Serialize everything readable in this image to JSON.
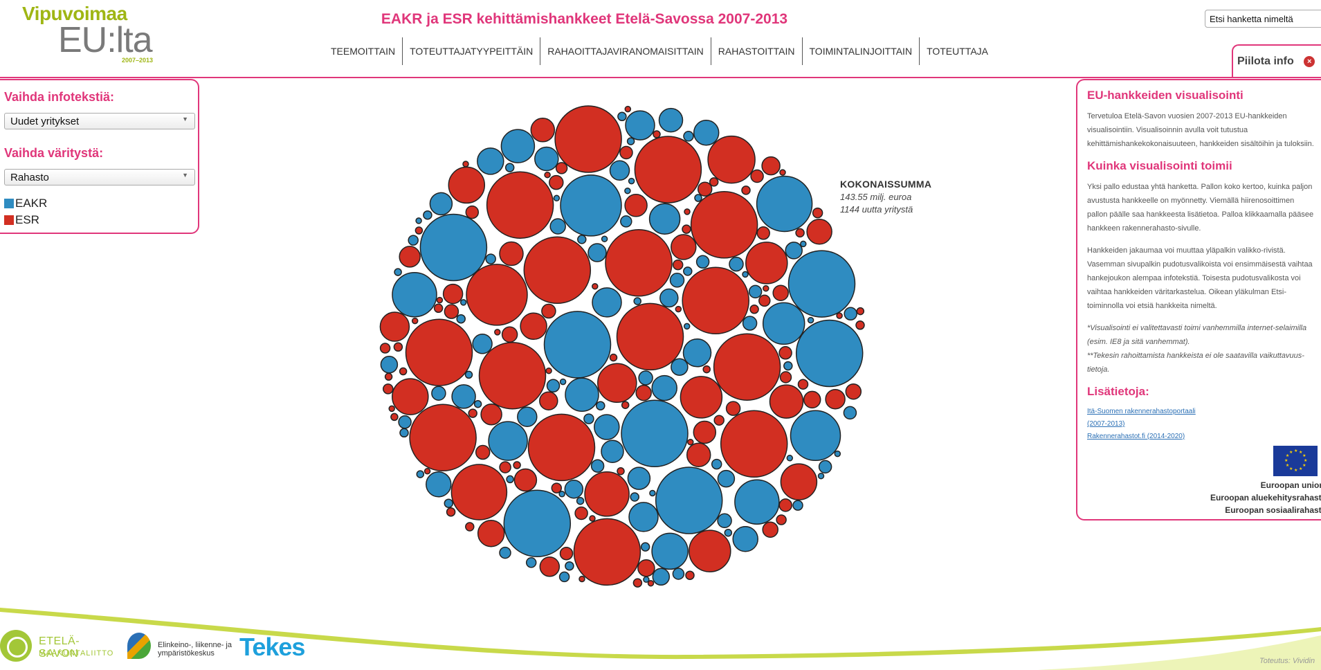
{
  "header": {
    "logo_line1": "Vipuvoimaa",
    "logo_line2": "EU:lta",
    "logo_line3": "2007–2013",
    "title": "EAKR ja ESR kehittämishankkeet Etelä-Savossa 2007-2013",
    "search_placeholder": "Etsi hanketta nimeltä",
    "hide_info_label": "Piilota info",
    "close_icon_glyph": "×"
  },
  "nav": {
    "items": [
      {
        "label": "TEEMOITTAIN"
      },
      {
        "label": "TOTEUTTAJATYYPEITTÄIN"
      },
      {
        "label": "RAHAOITTAJAVIRANOMAISITTAIN"
      },
      {
        "label": "RAHASTOITTAIN"
      },
      {
        "label": "TOIMINTALINJOITTAIN"
      },
      {
        "label": "TOTEUTTAJA"
      }
    ]
  },
  "left_panel": {
    "infotext_heading": "Vaihda infotekstiä:",
    "infotext_selected": "Uudet yritykset",
    "color_heading": "Vaihda väritystä:",
    "color_selected": "Rahasto",
    "dropdown_arrow": "▼",
    "legend": [
      {
        "label": "EAKR",
        "color": "#2f8cc1"
      },
      {
        "label": "ESR",
        "color": "#d22f22"
      }
    ]
  },
  "chart_data": {
    "type": "bubble",
    "title": "",
    "series": [
      {
        "name": "EAKR",
        "color": "#2f8cc1"
      },
      {
        "name": "ESR",
        "color": "#d22f22"
      }
    ],
    "annotation": {
      "title": "KOKONAISSUMMA",
      "sum": "143.55 milj. euroa",
      "companies": "1144 uutta yritystä"
    }
  },
  "info_panel": {
    "heading1": "EU-hankkeiden visualisointi",
    "para1": "Tervetuloa Etelä-Savon vuosien 2007-2013 EU-hankkeiden visualisointiin. Visualisoinnin avulla voit tutustua kehittämishankekokonaisuuteen, hankkeiden sisältöihin ja tuloksiin.",
    "heading2": "Kuinka visualisointi toimii",
    "para2": "Yksi pallo edustaa yhtä hanketta. Pallon koko kertoo, kuinka paljon avustusta hankkeelle on myönnetty. Viemällä hiirenosoittimen pallon päälle saa hankkeesta lisätietoa. Palloa klikkaamalla pääsee hankkeen rakennerahasto-sivulle.",
    "para3": "Hankkeiden jakaumaa voi muuttaa yläpalkin valikko-rivistä. Vasemman sivupalkin pudotusvalikoista voi ensimmäisestä vaihtaa hankejoukon alempaa infotekstiä. Toisesta pudotusvalikosta voi vaihtaa hankkeiden väritarkastelua. Oikean yläkulman Etsi-toiminnolla voi etsiä hankkeita nimeltä.",
    "note1": "*Visualisointi ei valitettavasti toimi vanhemmilla internet-selaimilla (esim. IE8 ja sitä vanhemmat).",
    "note2": "**Tekesin rahoittamista hankkeista ei ole saatavilla vaikuttavuus-tietoja.",
    "heading3": "Lisätietoja:",
    "link1": "Itä-Suomen rakennerahastoportaali (2007-2013)",
    "link2": "Rakennerahastot.fi (2014-2020)",
    "eu_line1": "Euroopan unioni",
    "eu_line2": "Euroopan aluekehitysrahasto",
    "eu_line3": "Euroopan sosiaalirahasto"
  },
  "footer": {
    "etela_line1": "ETELÄ-SAVON",
    "etela_line2": "MAAKUNTALIITTO",
    "ely_text": "Elinkeino-, liikenne- ja ympäristökeskus",
    "tekes": "Tekes",
    "credit": "Toteutus: Vividin"
  }
}
